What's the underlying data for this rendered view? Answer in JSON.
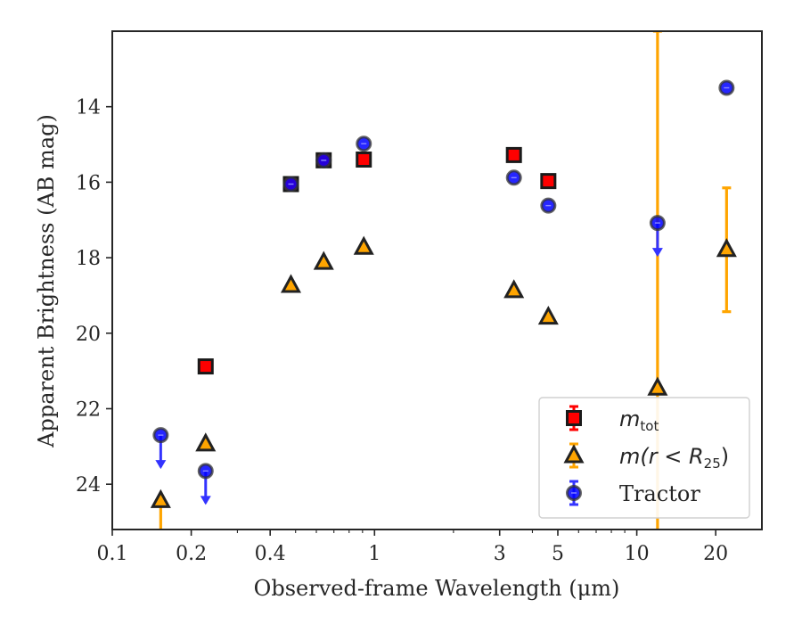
{
  "chart_data": {
    "type": "scatter",
    "xlabel": "Observed-frame Wavelength (μm)",
    "ylabel": "Apparent Brightness (AB mag)",
    "xscale": "log",
    "xlim": [
      0.1,
      30
    ],
    "ylim": [
      25.2,
      12.0
    ],
    "y_inverted": true,
    "xticks": [
      0.1,
      0.2,
      0.4,
      1,
      3,
      5,
      10,
      20
    ],
    "xtick_labels": [
      "0.1",
      "0.2",
      "0.4",
      "1",
      "3",
      "5",
      "10",
      "20"
    ],
    "yticks": [
      14,
      16,
      18,
      20,
      22,
      24
    ],
    "ytick_labels": [
      "14",
      "16",
      "18",
      "20",
      "22",
      "24"
    ],
    "legend_position": "lower right",
    "series": [
      {
        "name": "m_tot",
        "legend": {
          "base": "m",
          "sub": "tot"
        },
        "marker": "square",
        "color": "#ff0000",
        "points": [
          {
            "x": 0.227,
            "y": 20.88
          },
          {
            "x": 0.48,
            "y": 16.05
          },
          {
            "x": 0.64,
            "y": 15.42
          },
          {
            "x": 0.91,
            "y": 15.4
          },
          {
            "x": 3.4,
            "y": 15.28
          },
          {
            "x": 4.6,
            "y": 15.97
          }
        ]
      },
      {
        "name": "m(r < R25)",
        "legend": {
          "text": "m(r < R",
          "sub": "25",
          "close": ")"
        },
        "marker": "triangle",
        "color": "#ffa500",
        "points": [
          {
            "x": 0.153,
            "y": 24.43,
            "yerr_low": 25.3,
            "yerr_high": 24.43
          },
          {
            "x": 0.227,
            "y": 22.93
          },
          {
            "x": 0.48,
            "y": 18.73
          },
          {
            "x": 0.64,
            "y": 18.12
          },
          {
            "x": 0.91,
            "y": 17.72
          },
          {
            "x": 3.4,
            "y": 18.87
          },
          {
            "x": 4.6,
            "y": 19.57
          },
          {
            "x": 12.0,
            "y": 21.45,
            "yerr_low": 12.0,
            "yerr_high": 25.3
          },
          {
            "x": 22.0,
            "y": 17.78,
            "yerr_low": 16.15,
            "yerr_high": 19.43
          }
        ]
      },
      {
        "name": "Tractor",
        "legend": {
          "text": "Tractor"
        },
        "marker": "circle",
        "color": "#0000ff",
        "points": [
          {
            "x": 0.153,
            "y": 22.7,
            "upper_limit": true
          },
          {
            "x": 0.227,
            "y": 23.65,
            "upper_limit": true
          },
          {
            "x": 0.48,
            "y": 16.05
          },
          {
            "x": 0.64,
            "y": 15.42
          },
          {
            "x": 0.91,
            "y": 14.98
          },
          {
            "x": 3.4,
            "y": 15.88
          },
          {
            "x": 4.6,
            "y": 16.62
          },
          {
            "x": 12.0,
            "y": 17.08,
            "upper_limit": true
          },
          {
            "x": 22.0,
            "y": 13.5
          }
        ]
      }
    ]
  }
}
